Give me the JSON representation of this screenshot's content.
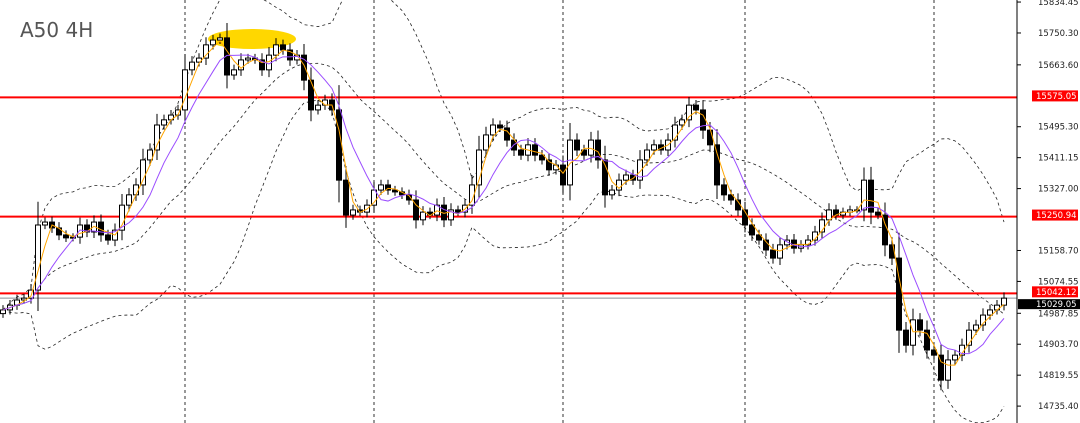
{
  "chart_data": {
    "type": "candlestick",
    "title": "A50 4H",
    "y_axis_ticks": [
      "15834.45",
      "15750.30",
      "15663.60",
      "15495.30",
      "15411.15",
      "15327.00",
      "15158.70",
      "15074.55",
      "14987.85",
      "14903.70",
      "14819.55",
      "14735.40"
    ],
    "ylim": [
      14720,
      15840
    ],
    "grid": false,
    "close": [
      14997,
      15010,
      15024,
      15029,
      15051,
      15228,
      15236,
      15220,
      15201,
      15193,
      15195,
      15228,
      15209,
      15236,
      15201,
      15187,
      15214,
      15282,
      15310,
      15337,
      15405,
      15432,
      15500,
      15514,
      15527,
      15541,
      15650,
      15671,
      15682,
      15718,
      15731,
      15737,
      15636,
      15650,
      15677,
      15682,
      15677,
      15650,
      15690,
      15718,
      15704,
      15677,
      15690,
      15622,
      15541,
      15554,
      15568,
      15541,
      15350,
      15255,
      15269,
      15263,
      15282,
      15323,
      15337,
      15323,
      15318,
      15310,
      15296,
      15242,
      15263,
      15255,
      15282,
      15242,
      15269,
      15263,
      15282,
      15337,
      15432,
      15473,
      15500,
      15492,
      15459,
      15432,
      15418,
      15446,
      15418,
      15405,
      15378,
      15391,
      15337,
      15459,
      15432,
      15418,
      15459,
      15405,
      15310,
      15323,
      15350,
      15364,
      15350,
      15405,
      15432,
      15446,
      15432,
      15459,
      15500,
      15514,
      15554,
      15541,
      15486,
      15446,
      15337,
      15310,
      15296,
      15269,
      15228,
      15201,
      15187,
      15160,
      15138,
      15174,
      15187,
      15165,
      15174,
      15187,
      15209,
      15242,
      15269,
      15255,
      15263,
      15269,
      15269,
      15350,
      15263,
      15255,
      15174,
      15138,
      14942,
      14901,
      14970,
      14942,
      14888,
      14874,
      14806,
      14861,
      14874,
      14901,
      14942,
      14956,
      14983,
      14997,
      15010,
      15029
    ],
    "indicators": {
      "fast_ma_color": "#ffa500",
      "slow_ma_color": "#9b4dff",
      "bands_color": "#222222",
      "bands_style": "dashed"
    },
    "horizontal_levels": [
      {
        "value": "15575.05",
        "color": "#ff0000"
      },
      {
        "value": "15250.94",
        "color": "#ff0000"
      },
      {
        "value": "15042.12",
        "color": "#ff0000"
      }
    ],
    "current_price": {
      "value": "15029.05",
      "color": "#000000"
    },
    "period_separators": [
      26,
      53,
      80,
      106,
      133
    ],
    "annotation": {
      "shape": "ellipse",
      "color": "#ffd700"
    }
  }
}
